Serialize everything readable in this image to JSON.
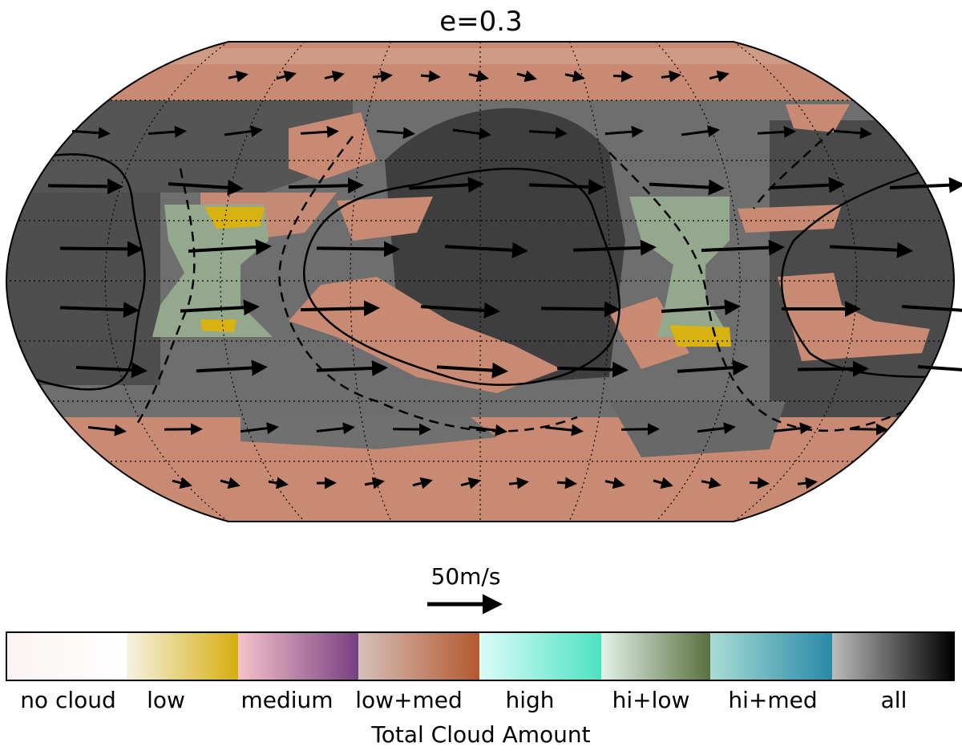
{
  "title": "e=0.3",
  "scale_label": "50m/s",
  "colorbar": {
    "labels": [
      "no cloud",
      "low",
      "medium",
      "low+med",
      "high",
      "hi+low",
      "hi+med",
      "all"
    ],
    "title": "Total Cloud Amount"
  }
}
